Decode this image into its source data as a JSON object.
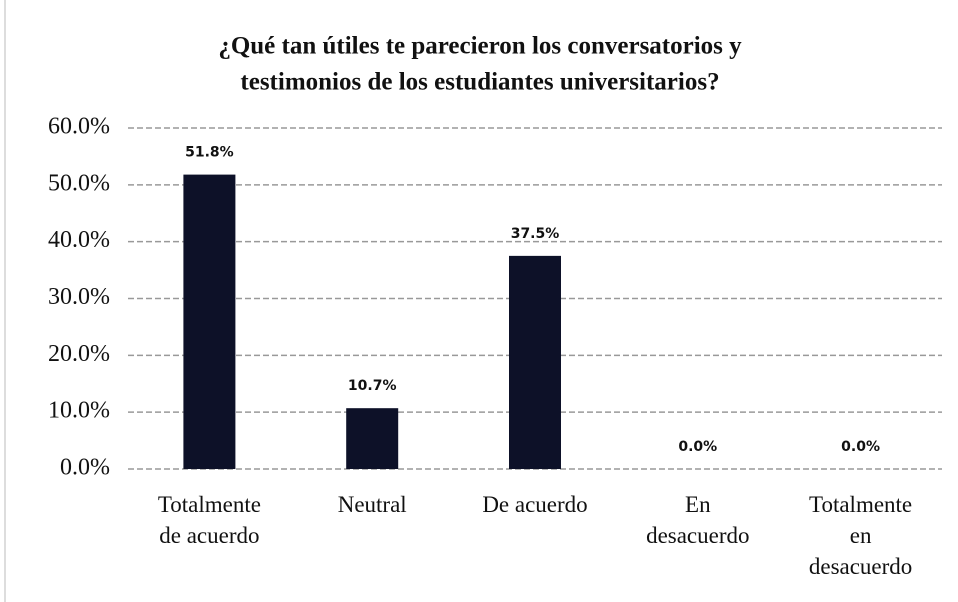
{
  "chart_data": {
    "type": "bar",
    "title": [
      "¿Qué tan útiles te parecieron los conversatorios y",
      "testimonios de los estudiantes universitarios?"
    ],
    "categories": [
      "Totalmente de acuerdo",
      "Neutral",
      "De acuerdo",
      "En desacuerdo",
      "Totalmente en desacuerdo"
    ],
    "values": [
      51.8,
      10.7,
      37.5,
      0,
      0
    ],
    "value_labels": [
      "51.8%",
      "10.7%",
      "37.5%",
      "0.0%",
      "0.0%"
    ],
    "color": "#0d1128",
    "ylim": [
      0,
      60
    ],
    "yticks": [
      {
        "value": 0,
        "label": "0.0%"
      },
      {
        "value": 10,
        "label": "10.0%"
      },
      {
        "value": 20,
        "label": "20.0%"
      },
      {
        "value": 30,
        "label": "30.0%"
      },
      {
        "value": 40,
        "label": "40.0%"
      },
      {
        "value": 50,
        "label": "50.0%"
      },
      {
        "value": 60,
        "label": "60.0%"
      }
    ],
    "grid": true
  }
}
